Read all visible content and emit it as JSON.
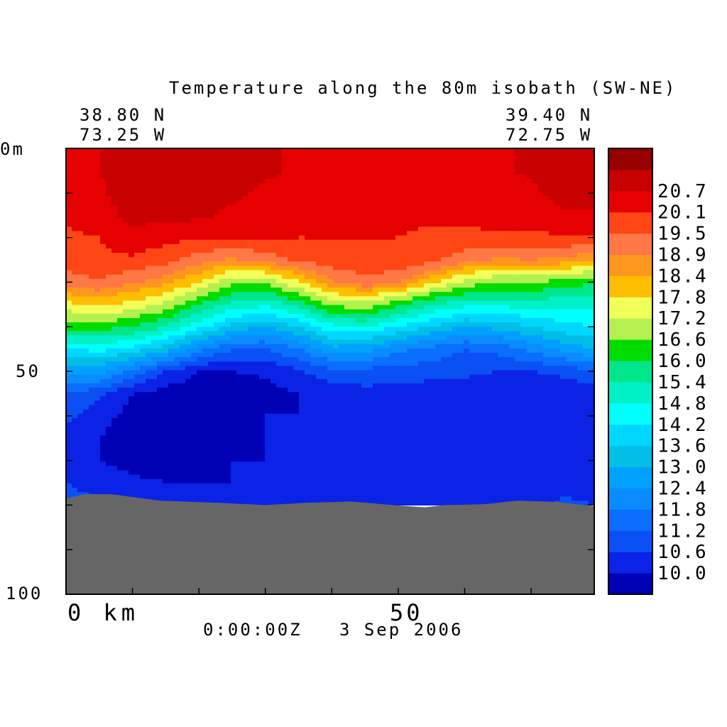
{
  "chart_data": {
    "type": "heatmap",
    "title": "Temperature along the 80m isobath (SW-NE)",
    "start_point": {
      "lat": "38.80 N",
      "lon": "73.25 W"
    },
    "end_point": {
      "lat": "39.40 N",
      "lon": "72.75 W"
    },
    "timestamp": "0:00:00Z   3 Sep 2006",
    "x_axis": {
      "label": "km",
      "range": [
        0,
        79.5
      ],
      "ticks": [
        {
          "value": 0,
          "label": "0 km"
        },
        {
          "value": 50,
          "label": "50"
        }
      ]
    },
    "y_axis": {
      "label": "m",
      "range": [
        0,
        100
      ],
      "inverted": true,
      "ticks": [
        {
          "value": 0,
          "label": "0m"
        },
        {
          "value": 50,
          "label": "50"
        },
        {
          "value": 100,
          "label": "100"
        }
      ]
    },
    "bottom_fill_color": "#666666",
    "colorbar": {
      "levels": [
        {
          "color": "#0000b4",
          "label": ""
        },
        {
          "color": "#0a23e6",
          "label": "10.0"
        },
        {
          "color": "#0a50f5",
          "label": "10.6"
        },
        {
          "color": "#0a6eff",
          "label": "11.2"
        },
        {
          "color": "#0a8cff",
          "label": "11.8"
        },
        {
          "color": "#00a0ff",
          "label": "12.4"
        },
        {
          "color": "#00bee6",
          "label": "13.0"
        },
        {
          "color": "#00d7ff",
          "label": "13.6"
        },
        {
          "color": "#00ffff",
          "label": "14.2"
        },
        {
          "color": "#00f0c8",
          "label": "14.8"
        },
        {
          "color": "#00e68c",
          "label": "15.4"
        },
        {
          "color": "#00dc00",
          "label": "16.0"
        },
        {
          "color": "#b4f050",
          "label": "16.6"
        },
        {
          "color": "#f0ff5a",
          "label": "17.2"
        },
        {
          "color": "#ffbe00",
          "label": "17.8"
        },
        {
          "color": "#ff961e",
          "label": "18.4"
        },
        {
          "color": "#ff7846",
          "label": "18.9"
        },
        {
          "color": "#ff4614",
          "label": "19.5"
        },
        {
          "color": "#e60000",
          "label": "20.1"
        },
        {
          "color": "#c80000",
          "label": "20.7"
        },
        {
          "color": "#960000",
          "label": ""
        }
      ]
    },
    "temperature_field": {
      "x_km": [
        0,
        5,
        10,
        15,
        20,
        25,
        30,
        35,
        40,
        45,
        50,
        55,
        60,
        65,
        70,
        75,
        79.5
      ],
      "depth_m": [
        0,
        5,
        10,
        15,
        20,
        25,
        30,
        35,
        40,
        45,
        50,
        55,
        60,
        65,
        70,
        75,
        80
      ],
      "values_degC": [
        [
          20.4,
          20.7,
          21.0,
          21.0,
          21.0,
          21.0,
          20.8,
          20.6,
          20.5,
          20.4,
          20.4,
          20.4,
          20.4,
          20.6,
          20.8,
          21.0,
          21.0
        ],
        [
          20.4,
          20.7,
          21.0,
          21.0,
          21.0,
          21.0,
          20.8,
          20.6,
          20.5,
          20.4,
          20.4,
          20.4,
          20.4,
          20.6,
          20.8,
          21.0,
          21.0
        ],
        [
          20.3,
          20.6,
          21.0,
          21.0,
          21.0,
          20.8,
          20.6,
          20.5,
          20.4,
          20.3,
          20.3,
          20.3,
          20.3,
          20.4,
          20.6,
          20.9,
          20.9
        ],
        [
          20.2,
          20.4,
          20.9,
          20.9,
          20.8,
          20.6,
          20.4,
          20.3,
          20.2,
          20.2,
          20.2,
          20.2,
          20.2,
          20.3,
          20.4,
          20.6,
          20.6
        ],
        [
          20.0,
          20.1,
          20.5,
          20.3,
          20.2,
          20.1,
          20.1,
          20.1,
          20.1,
          20.1,
          20.1,
          20.0,
          20.0,
          20.0,
          20.0,
          20.0,
          20.0
        ],
        [
          19.8,
          20.0,
          20.0,
          19.7,
          19.2,
          18.8,
          19.2,
          19.6,
          19.9,
          20.0,
          20.0,
          19.7,
          19.1,
          18.8,
          18.9,
          18.8,
          18.4
        ],
        [
          19.2,
          19.4,
          19.0,
          18.6,
          17.8,
          16.8,
          16.6,
          17.8,
          18.8,
          19.3,
          19.0,
          18.0,
          17.0,
          16.6,
          16.6,
          16.4,
          16.0
        ],
        [
          17.6,
          18.0,
          17.6,
          17.0,
          16.0,
          15.2,
          15.0,
          15.6,
          16.8,
          17.0,
          16.2,
          15.4,
          15.0,
          15.0,
          15.0,
          15.0,
          15.0
        ],
        [
          16.2,
          16.3,
          16.0,
          15.4,
          14.4,
          13.4,
          13.0,
          13.6,
          14.6,
          14.8,
          14.2,
          13.6,
          13.0,
          13.2,
          13.6,
          14.0,
          14.2
        ],
        [
          14.2,
          14.4,
          14.0,
          13.2,
          12.0,
          11.2,
          11.2,
          11.8,
          12.8,
          12.6,
          12.0,
          11.6,
          11.2,
          11.4,
          12.0,
          12.6,
          13.0
        ],
        [
          12.8,
          12.6,
          11.6,
          10.6,
          10.0,
          10.0,
          10.1,
          10.5,
          11.0,
          11.0,
          10.9,
          10.9,
          10.8,
          10.6,
          10.6,
          10.8,
          11.2
        ],
        [
          11.2,
          10.8,
          10.0,
          9.7,
          9.7,
          9.7,
          9.8,
          10.0,
          10.2,
          10.4,
          10.3,
          10.2,
          10.1,
          10.0,
          10.0,
          10.1,
          10.2
        ],
        [
          10.8,
          10.2,
          9.8,
          9.6,
          9.7,
          9.8,
          10.0,
          10.0,
          10.0,
          10.1,
          10.1,
          10.0,
          10.0,
          10.0,
          10.0,
          10.0,
          10.1
        ],
        [
          10.4,
          10.0,
          9.7,
          9.6,
          9.7,
          9.9,
          10.0,
          10.0,
          10.0,
          10.0,
          10.0,
          10.0,
          10.0,
          10.0,
          10.0,
          10.0,
          10.0
        ],
        [
          10.2,
          10.0,
          9.8,
          9.8,
          9.9,
          10.0,
          10.0,
          10.0,
          10.0,
          10.0,
          10.0,
          10.0,
          10.0,
          10.0,
          10.0,
          10.0,
          10.0
        ],
        [
          10.6,
          10.4,
          10.1,
          10.0,
          10.0,
          10.0,
          10.0,
          10.0,
          10.2,
          10.0,
          10.0,
          10.0,
          10.0,
          10.0,
          10.2,
          10.4,
          10.4
        ],
        [
          10.8,
          10.7,
          10.3,
          10.0,
          10.0,
          10.0,
          10.0,
          10.0,
          10.5,
          10.2,
          10.0,
          10.0,
          10.0,
          10.0,
          10.5,
          10.7,
          10.6
        ]
      ]
    },
    "bottom_depth_m": [
      {
        "x": 0,
        "depth": 78.5
      },
      {
        "x": 3,
        "depth": 77.5
      },
      {
        "x": 7,
        "depth": 77.6
      },
      {
        "x": 14,
        "depth": 79.0
      },
      {
        "x": 23,
        "depth": 79.5
      },
      {
        "x": 30,
        "depth": 80.0
      },
      {
        "x": 36,
        "depth": 79.5
      },
      {
        "x": 43,
        "depth": 79.2
      },
      {
        "x": 50,
        "depth": 80.1
      },
      {
        "x": 54,
        "depth": 80.5
      },
      {
        "x": 57,
        "depth": 80.0
      },
      {
        "x": 63,
        "depth": 79.8
      },
      {
        "x": 68,
        "depth": 79.0
      },
      {
        "x": 74,
        "depth": 79.3
      },
      {
        "x": 79.5,
        "depth": 80.3
      }
    ]
  }
}
